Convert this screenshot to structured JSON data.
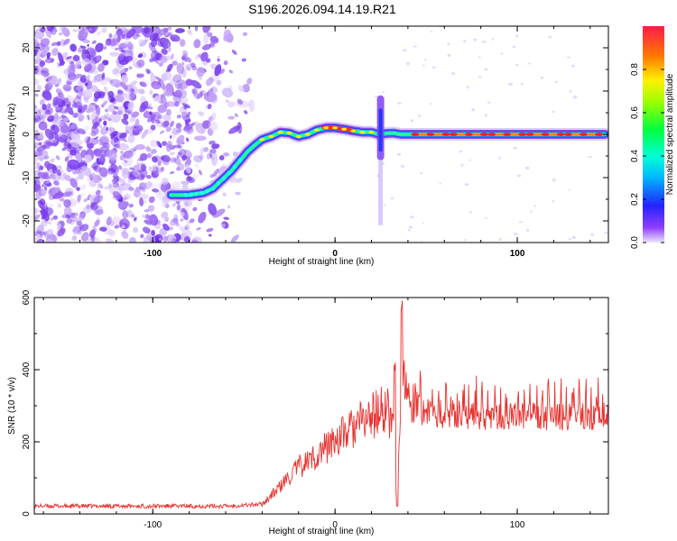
{
  "chart_data": [
    {
      "type": "heatmap",
      "title": "S196.2026.094.14.19.R21",
      "xlabel": "Height of straight line (km)",
      "ylabel": "Frequency (Hz)",
      "xlim": [
        -165,
        150
      ],
      "ylim": [
        -25,
        25
      ],
      "x_ticks": [
        -100,
        0,
        100
      ],
      "x_tick_labels": [
        "-100",
        "0",
        "100"
      ],
      "y_ticks": [
        -20,
        -10,
        0,
        10,
        20
      ],
      "y_tick_labels": [
        "-20",
        "-10",
        "0",
        "10",
        "20"
      ],
      "ridge": {
        "x": [
          -90,
          -80,
          -72,
          -67,
          -62,
          -57,
          -52,
          -48,
          -44,
          -40,
          -35,
          -30,
          -25,
          -20,
          -15,
          -10,
          -5,
          0,
          5,
          10,
          15,
          20,
          24,
          28,
          32,
          36,
          40,
          50,
          60,
          70,
          80,
          90,
          100,
          110,
          120,
          130,
          140,
          148
        ],
        "y": [
          -14,
          -14,
          -13.5,
          -12.5,
          -10.5,
          -8.5,
          -6,
          -4,
          -2.5,
          -1.2,
          -0.5,
          0.5,
          0.3,
          -0.5,
          0,
          1,
          1.5,
          1.5,
          1.2,
          0.8,
          0.5,
          0.5,
          0,
          0.2,
          0.3,
          0,
          0,
          0,
          0,
          0,
          0,
          0,
          0,
          0,
          0,
          0,
          0,
          0
        ]
      },
      "vertical_feature_x": 25,
      "noise_region_x": [
        -165,
        -50
      ],
      "colorbar": {
        "label": "Normalized spectral amplitude",
        "range": [
          0,
          1
        ],
        "ticks": [
          "0.0",
          "0.2",
          "0.4",
          "0.6",
          "0.8"
        ]
      }
    },
    {
      "type": "line",
      "xlabel": "Height of straight line (km)",
      "ylabel": "SNR (10 * v/v)",
      "xlim": [
        -165,
        150
      ],
      "ylim": [
        0,
        600
      ],
      "x_ticks": [
        -100,
        0,
        100
      ],
      "x_tick_labels": [
        "-100",
        "0",
        "100"
      ],
      "y_ticks": [
        0,
        200,
        400,
        600
      ],
      "y_tick_labels": [
        "0",
        "200",
        "400",
        "600"
      ],
      "series": [
        {
          "name": "SNR",
          "color": "#e8322f",
          "x": [
            -165,
            -100,
            -60,
            -40,
            -30,
            -20,
            -10,
            0,
            10,
            20,
            28,
            32,
            34,
            36,
            38,
            40,
            45,
            50,
            60,
            70,
            80,
            90,
            100,
            110,
            120,
            130,
            140,
            150
          ],
          "values": [
            20,
            20,
            20,
            25,
            70,
            120,
            150,
            190,
            220,
            250,
            270,
            230,
            20,
            280,
            330,
            290,
            280,
            270,
            265,
            265,
            260,
            260,
            260,
            258,
            258,
            258,
            260,
            260
          ]
        }
      ]
    }
  ],
  "colors": {
    "line": "#e8322f",
    "noise": "#7a3cf0"
  }
}
